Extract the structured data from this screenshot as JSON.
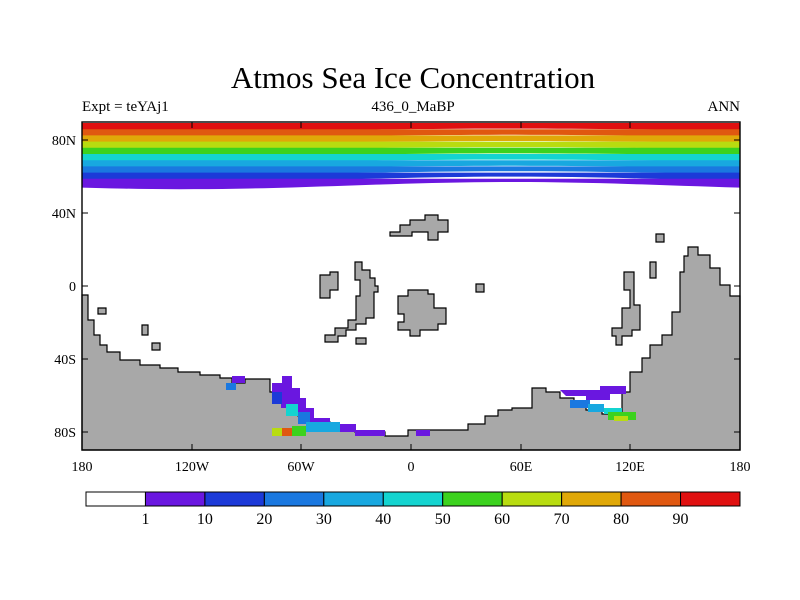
{
  "title": "Atmos Sea Ice Concentration",
  "subtitle_left": "Expt = teYAj1",
  "subtitle_center": "436_0_MaBP",
  "subtitle_right": "ANN",
  "lat_labels": [
    "80N",
    "40N",
    "0",
    "40S",
    "80S"
  ],
  "lon_labels": [
    "180",
    "120W",
    "60W",
    "0",
    "60E",
    "120E",
    "180"
  ],
  "colorbar": {
    "labels": [
      "1",
      "10",
      "20",
      "30",
      "40",
      "50",
      "60",
      "70",
      "80",
      "90"
    ],
    "colors": [
      "#ffffff",
      "#6a17e0",
      "#1c3ad8",
      "#1a78e0",
      "#18a8e0",
      "#14d4d0",
      "#3cd21e",
      "#b8dc10",
      "#e0a808",
      "#e05810",
      "#e01010"
    ]
  },
  "colors": {
    "land": "#a8a8a8",
    "outline": "#000000"
  }
}
